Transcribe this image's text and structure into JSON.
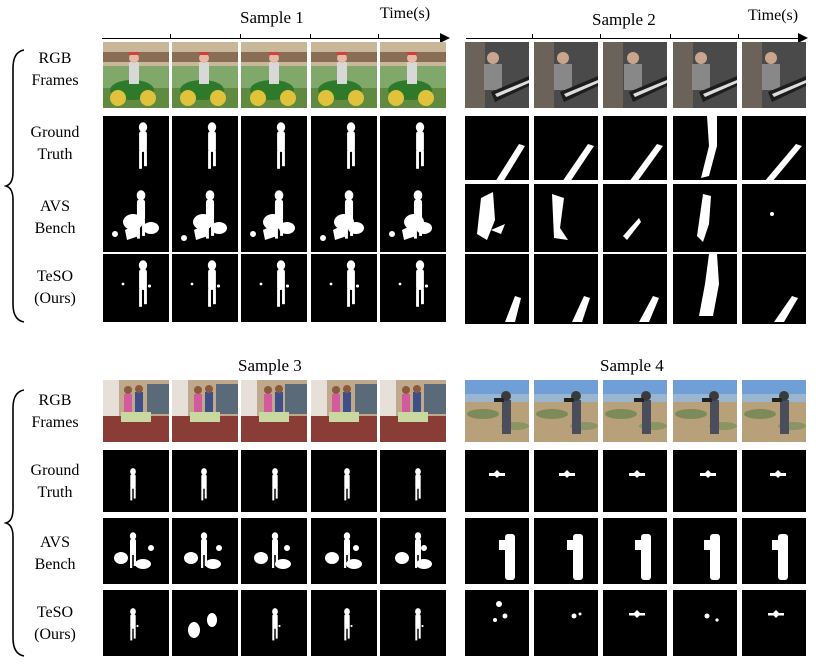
{
  "time_axis_label": "Time(s)",
  "row_labels": [
    {
      "line1": "RGB",
      "line2": "Frames"
    },
    {
      "line1": "Ground",
      "line2": "Truth"
    },
    {
      "line1": "AVS",
      "line2": "Bench"
    },
    {
      "line1": "TeSO",
      "line2": "(Ours)"
    }
  ],
  "samples": [
    {
      "title": "Sample 1",
      "subject": "man on green riding mower",
      "frames_per_row": 5
    },
    {
      "title": "Sample 2",
      "subject": "man playing piano",
      "frames_per_row": 5
    },
    {
      "title": "Sample 3",
      "subject": "children in living room",
      "frames_per_row": 5
    },
    {
      "title": "Sample 4",
      "subject": "person filming on hillside",
      "frames_per_row": 5
    }
  ],
  "colors": {
    "mask_background": "#000000",
    "mask_foreground": "#ffffff"
  }
}
